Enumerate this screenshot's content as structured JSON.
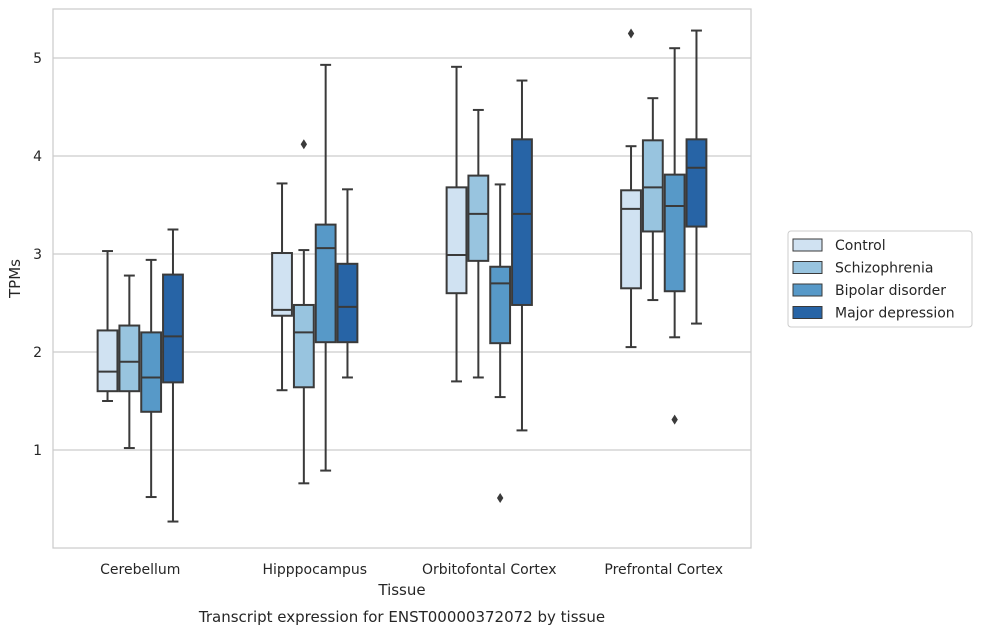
{
  "chart_data": {
    "type": "boxplot",
    "title": "",
    "caption": "Transcript expression for ENST00000372072 by tissue",
    "xlabel": "Tissue",
    "ylabel": "TPMs",
    "ylim": [
      0,
      5.5
    ],
    "yticks": [
      1,
      2,
      3,
      4,
      5
    ],
    "grid": "horizontal",
    "legend_position": "right",
    "categories": [
      "Cerebellum",
      "Hipppocampus",
      "Orbitofontal Cortex",
      "Prefrontal Cortex"
    ],
    "series": [
      {
        "name": "Control",
        "color": "#d0e2f2",
        "boxes": [
          {
            "whislo": 1.5,
            "q1": 1.6,
            "med": 1.8,
            "q3": 2.22,
            "whishi": 3.03,
            "fliers": []
          },
          {
            "whislo": 1.61,
            "q1": 2.37,
            "med": 2.43,
            "q3": 3.01,
            "whishi": 3.72,
            "fliers": []
          },
          {
            "whislo": 1.7,
            "q1": 2.6,
            "med": 2.99,
            "q3": 3.68,
            "whishi": 4.91,
            "fliers": []
          },
          {
            "whislo": 2.05,
            "q1": 2.65,
            "med": 3.46,
            "q3": 3.65,
            "whishi": 4.1,
            "fliers": [
              5.25
            ]
          }
        ]
      },
      {
        "name": "Schizophrenia",
        "color": "#98c4df",
        "boxes": [
          {
            "whislo": 1.02,
            "q1": 1.6,
            "med": 1.9,
            "q3": 2.27,
            "whishi": 2.78,
            "fliers": []
          },
          {
            "whislo": 0.66,
            "q1": 1.64,
            "med": 2.2,
            "q3": 2.48,
            "whishi": 3.04,
            "fliers": [
              4.12
            ]
          },
          {
            "whislo": 1.74,
            "q1": 2.93,
            "med": 3.41,
            "q3": 3.8,
            "whishi": 4.47,
            "fliers": []
          },
          {
            "whislo": 2.53,
            "q1": 3.23,
            "med": 3.68,
            "q3": 4.16,
            "whishi": 4.59,
            "fliers": []
          }
        ]
      },
      {
        "name": "Bipolar disorder",
        "color": "#5799c8",
        "boxes": [
          {
            "whislo": 0.52,
            "q1": 1.39,
            "med": 1.74,
            "q3": 2.2,
            "whishi": 2.94,
            "fliers": []
          },
          {
            "whislo": 0.79,
            "q1": 2.1,
            "med": 3.06,
            "q3": 3.3,
            "whishi": 4.93,
            "fliers": []
          },
          {
            "whislo": 1.54,
            "q1": 2.09,
            "med": 2.7,
            "q3": 2.87,
            "whishi": 3.71,
            "fliers": [
              0.51
            ]
          },
          {
            "whislo": 2.15,
            "q1": 2.62,
            "med": 3.49,
            "q3": 3.81,
            "whishi": 5.1,
            "fliers": [
              1.31
            ]
          }
        ]
      },
      {
        "name": "Major depression",
        "color": "#2764a6",
        "boxes": [
          {
            "whislo": 0.27,
            "q1": 1.69,
            "med": 2.16,
            "q3": 2.79,
            "whishi": 3.25,
            "fliers": []
          },
          {
            "whislo": 1.74,
            "q1": 2.1,
            "med": 2.46,
            "q3": 2.9,
            "whishi": 3.66,
            "fliers": []
          },
          {
            "whislo": 1.2,
            "q1": 2.48,
            "med": 3.41,
            "q3": 4.17,
            "whishi": 4.77,
            "fliers": []
          },
          {
            "whislo": 2.29,
            "q1": 3.28,
            "med": 3.88,
            "q3": 4.17,
            "whishi": 5.28,
            "fliers": []
          }
        ]
      }
    ]
  }
}
